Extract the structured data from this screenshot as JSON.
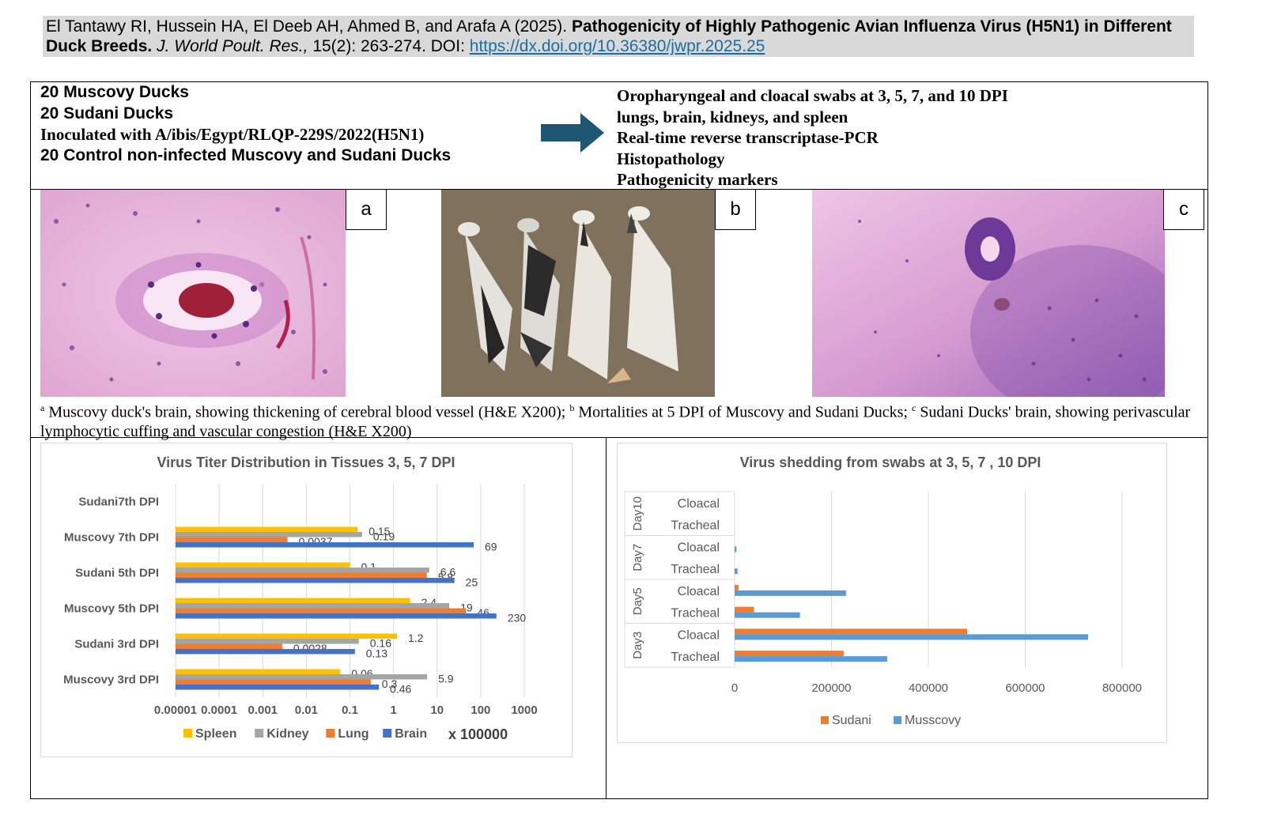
{
  "citation": {
    "authors": "El Tantawy RI, Hussein HA, El Deeb AH, Ahmed B, and Arafa A (2025).",
    "title": "Pathogenicity of Highly Pathogenic Avian Influenza Virus (H5N1) in Different Duck Breeds.",
    "journal": "J. World Poult. Res.,",
    "volume": "15(2): 263-274.",
    "doi_label": "DOI:",
    "doi_url": "https://dx.doi.org/10.36380/jwpr.2025.25"
  },
  "design": {
    "left": [
      "20 Muscovy Ducks",
      "20 Sudani Ducks",
      "Inoculated with A/ibis/Egypt/RLQP-229S/2022(H5N1)",
      "20 Control non-infected Muscovy and Sudani Ducks"
    ],
    "right": [
      "Oropharyngeal and cloacal swabs at 3, 5, 7, and 10 DPI",
      "lungs, brain, kidneys, and spleen",
      "Real-time reverse transcriptase-PCR",
      "Histopathology",
      "Pathogenicity markers"
    ]
  },
  "colors": {
    "arrow": "#1f5673",
    "spleen": "#ffc000",
    "kidney": "#a5a5a5",
    "lung": "#ed7d31",
    "brain": "#4472c4",
    "sudani": "#ed7d31",
    "muscovy": "#5b9bd5"
  },
  "panels": {
    "a": "a",
    "b": "b",
    "c": "c"
  },
  "caption": {
    "sup_a": "a",
    "text_a": " Muscovy duck's brain, showing thickening of cerebral blood vessel (H&E X200); ",
    "sup_b": "b",
    "text_b": " Mortalities at 5 DPI of Muscovy and Sudani Ducks; ",
    "sup_c": "c",
    "text_c": " Sudani Ducks' brain, showing perivascular lymphocytic cuffing and vascular congestion (H&E X200)"
  },
  "chart_data": [
    {
      "type": "bar",
      "orientation": "horizontal",
      "title": "Virus Titer Distribution  in Tissues 3, 5, 7 DPI",
      "x_scale": "log",
      "x_ticks": [
        "0.00001",
        "0.0001",
        "0.001",
        "0.01",
        "0.1",
        "1",
        "10",
        "100",
        "1000"
      ],
      "x_unit_label": "x 100000",
      "categories": [
        "Muscovy 3rd DPI",
        "Sudani 3rd DPI",
        "Muscovy 5th DPI",
        "Sudani 5th DPI",
        "Muscovy 7th DPI",
        "Sudani7th DPI"
      ],
      "series": [
        {
          "name": "Spleen",
          "values": [
            0.06,
            1.2,
            2.4,
            0.1,
            0.15,
            null
          ],
          "labels": [
            "0.06",
            "1.2",
            "2.4",
            "0.1",
            "0.15",
            ""
          ]
        },
        {
          "name": "Kidney",
          "values": [
            5.9,
            0.16,
            19,
            6.6,
            0.19,
            null
          ],
          "labels": [
            "5.9",
            "0.16",
            "19",
            "6.6",
            "0.19",
            ""
          ]
        },
        {
          "name": "Lung",
          "values": [
            0.3,
            0.0028,
            46,
            5.8,
            0.0037,
            null
          ],
          "labels": [
            "0.3",
            "0.0028",
            "46",
            "5.8",
            "0.0037",
            ""
          ]
        },
        {
          "name": "Brain",
          "values": [
            0.46,
            0.13,
            230,
            25,
            69,
            null
          ],
          "labels": [
            "0.46",
            "0.13",
            "230",
            "25",
            "69",
            ""
          ]
        }
      ],
      "legend": "bottom",
      "grid": true
    },
    {
      "type": "bar",
      "orientation": "horizontal",
      "title": "Virus shedding from swabs at 3, 5, 7 , 10 DPI",
      "groups": [
        {
          "name": "Day3",
          "categories": [
            "Tracheal",
            "Cloacal"
          ]
        },
        {
          "name": "Day5",
          "categories": [
            "Tracheal",
            "Cloacal"
          ]
        },
        {
          "name": "Day7",
          "categories": [
            "Tracheal",
            "Cloacal"
          ]
        },
        {
          "name": "Day10",
          "categories": [
            "Tracheal",
            "Cloacal"
          ]
        }
      ],
      "x_ticks": [
        "0",
        "200000",
        "400000",
        "600000",
        "800000"
      ],
      "xlim": [
        0,
        800000
      ],
      "series": [
        {
          "name": "Sudani",
          "values": [
            225000,
            480000,
            40000,
            8000,
            0,
            0,
            0,
            0
          ]
        },
        {
          "name": "Musscovy",
          "values": [
            315000,
            730000,
            135000,
            230000,
            6000,
            4000,
            0,
            0
          ]
        }
      ],
      "legend": "bottom",
      "grid": true
    }
  ]
}
